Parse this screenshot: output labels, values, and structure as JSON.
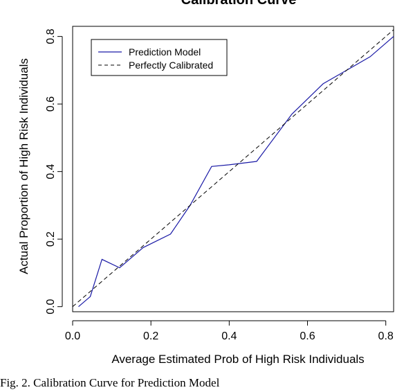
{
  "chart_data": {
    "type": "line",
    "title": "Calibration Curve",
    "xlabel": "Average Estimated Prob of High Risk Individuals",
    "ylabel": "Actual Proportion of High Risk Individuals",
    "xlim": [
      0,
      0.82
    ],
    "ylim": [
      -0.015,
      0.83
    ],
    "xticks": [
      0.0,
      0.2,
      0.4,
      0.6,
      0.8
    ],
    "xtick_labels": [
      "0.0",
      "0.2",
      "0.4",
      "0.6",
      "0.8"
    ],
    "yticks": [
      0.0,
      0.2,
      0.4,
      0.6,
      0.8
    ],
    "ytick_labels": [
      "0.0",
      "0.2",
      "0.4",
      "0.6",
      "0.8"
    ],
    "grid": false,
    "legend_position": "top-left",
    "legend": [
      {
        "label": "Prediction Model",
        "style": "solid",
        "color": "#1a1aa6"
      },
      {
        "label": "Perfectly Calibrated",
        "style": "dashed",
        "color": "#000000"
      }
    ],
    "series": [
      {
        "name": "Prediction Model",
        "color": "#1a1aa6",
        "style": "solid",
        "points": [
          [
            0.015,
            0.0
          ],
          [
            0.045,
            0.03
          ],
          [
            0.075,
            0.14
          ],
          [
            0.12,
            0.115
          ],
          [
            0.18,
            0.175
          ],
          [
            0.25,
            0.215
          ],
          [
            0.3,
            0.3
          ],
          [
            0.355,
            0.415
          ],
          [
            0.4,
            0.42
          ],
          [
            0.47,
            0.43
          ],
          [
            0.56,
            0.57
          ],
          [
            0.64,
            0.66
          ],
          [
            0.7,
            0.7
          ],
          [
            0.76,
            0.74
          ],
          [
            0.82,
            0.8
          ]
        ]
      },
      {
        "name": "Perfectly Calibrated",
        "color": "#000000",
        "style": "dashed",
        "points": [
          [
            0.0,
            0.0
          ],
          [
            0.82,
            0.82
          ]
        ]
      }
    ]
  },
  "caption": "Fig. 2.   Calibration Curve for Prediction Model"
}
